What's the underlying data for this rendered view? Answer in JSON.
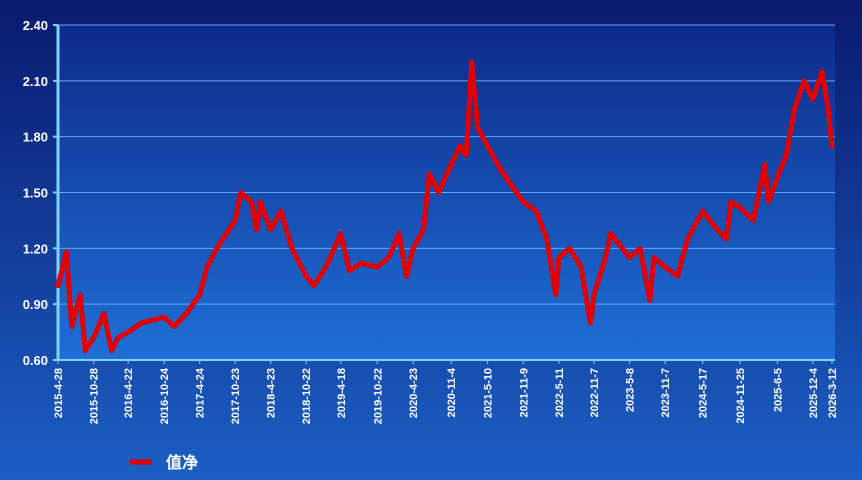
{
  "chart_data": {
    "type": "line",
    "series": [
      {
        "name": "值净",
        "color": "#e00000",
        "x": [
          "2015-4-28",
          "2015-6-10",
          "2015-7-8",
          "2015-8-20",
          "2015-9-15",
          "2015-10-28",
          "2015-12-20",
          "2016-1-28",
          "2016-3-1",
          "2016-4-22",
          "2016-7-1",
          "2016-10-24",
          "2016-12-15",
          "2017-2-15",
          "2017-4-24",
          "2017-6-1",
          "2017-8-1",
          "2017-10-23",
          "2017-11-20",
          "2018-1-15",
          "2018-2-10",
          "2018-3-1",
          "2018-4-23",
          "2018-6-15",
          "2018-8-10",
          "2018-10-22",
          "2018-12-1",
          "2019-2-1",
          "2019-4-18",
          "2019-6-1",
          "2019-8-1",
          "2019-10-22",
          "2019-12-20",
          "2020-2-10",
          "2020-3-20",
          "2020-4-23",
          "2020-6-15",
          "2020-7-15",
          "2020-9-1",
          "2020-11-4",
          "2020-12-20",
          "2021-1-20",
          "2021-2-18",
          "2021-3-20",
          "2021-5-10",
          "2021-7-1",
          "2021-9-1",
          "2021-11-9",
          "2022-1-15",
          "2022-3-10",
          "2022-4-25",
          "2022-5-11",
          "2022-7-5",
          "2022-9-1",
          "2022-10-20",
          "2022-11-7",
          "2023-1-5",
          "2023-2-1",
          "2023-5-8",
          "2023-7-1",
          "2023-8-20",
          "2023-9-10",
          "2023-11-7",
          "2024-1-10",
          "2024-3-1",
          "2024-5-17",
          "2024-8-1",
          "2024-9-15",
          "2024-10-10",
          "2024-11-25",
          "2025-2-1",
          "2025-4-1",
          "2025-4-20",
          "2025-6-5",
          "2025-7-20",
          "2025-9-1",
          "2025-10-20",
          "2025-12-4",
          "2026-1-20",
          "2026-2-20",
          "2026-3-12"
        ],
        "values": [
          1.0,
          1.18,
          0.78,
          0.95,
          0.65,
          0.72,
          0.85,
          0.65,
          0.72,
          0.75,
          0.8,
          0.83,
          0.78,
          0.85,
          0.95,
          1.1,
          1.22,
          1.35,
          1.5,
          1.45,
          1.3,
          1.45,
          1.3,
          1.4,
          1.2,
          1.05,
          1.0,
          1.1,
          1.28,
          1.08,
          1.12,
          1.1,
          1.15,
          1.28,
          1.05,
          1.2,
          1.3,
          1.6,
          1.5,
          1.65,
          1.75,
          1.7,
          2.2,
          1.85,
          1.75,
          1.65,
          1.55,
          1.45,
          1.4,
          1.25,
          0.95,
          1.15,
          1.2,
          1.1,
          0.8,
          0.95,
          1.15,
          1.28,
          1.15,
          1.2,
          0.92,
          1.15,
          1.1,
          1.05,
          1.25,
          1.4,
          1.3,
          1.25,
          1.45,
          1.42,
          1.35,
          1.65,
          1.45,
          1.58,
          1.7,
          1.95,
          2.1,
          2.0,
          2.15,
          1.95,
          1.75
        ]
      }
    ],
    "xlim": [
      "2015-4-28",
      "2026-3-12"
    ],
    "xticks": [
      "2015-4-28",
      "2015-10-28",
      "2016-4-22",
      "2016-10-24",
      "2017-4-24",
      "2017-10-23",
      "2018-4-23",
      "2018-10-22",
      "2019-4-18",
      "2019-10-22",
      "2020-4-23",
      "2020-11-4",
      "2021-5-10",
      "2021-11-9",
      "2022-5-11",
      "2022-11-7",
      "2023-5-8",
      "2023-11-7",
      "2024-5-17",
      "2024-11-25",
      "2025-6-5",
      "2025-12-4",
      "2026-3-12"
    ],
    "ylim": [
      0.6,
      2.4
    ],
    "yticks": [
      {
        "value": 0.6,
        "label": "0.60"
      },
      {
        "value": 0.9,
        "label": "0.90"
      },
      {
        "value": 1.2,
        "label": "1.20"
      },
      {
        "value": 1.5,
        "label": "1.50"
      },
      {
        "value": 1.8,
        "label": "1.80"
      },
      {
        "value": 2.1,
        "label": "2.10"
      },
      {
        "value": 2.4,
        "label": "2.40"
      }
    ],
    "grid": true,
    "legend": "bottom-left"
  }
}
